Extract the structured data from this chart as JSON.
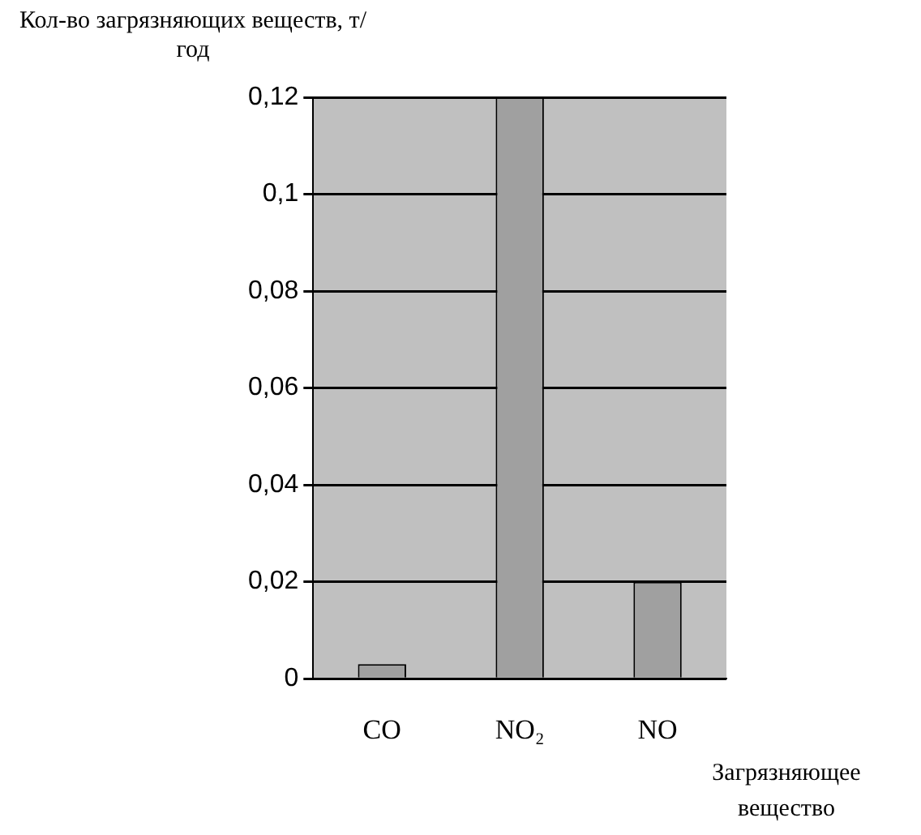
{
  "chart_data": {
    "type": "bar",
    "ylabel": "Кол-во загрязняющих веществ, т/год",
    "xlabel": "Загрязняющее вещество",
    "categories": [
      "CO",
      "NO₂",
      "NO"
    ],
    "values": [
      0.003,
      0.12,
      0.02
    ],
    "color": "#a0a0a0",
    "ylim": [
      0,
      0.12
    ],
    "yticks": [
      {
        "value": 0,
        "label": "0"
      },
      {
        "value": 0.02,
        "label": "0,02"
      },
      {
        "value": 0.04,
        "label": "0,04"
      },
      {
        "value": 0.06,
        "label": "0,06"
      },
      {
        "value": 0.08,
        "label": "0,08"
      },
      {
        "value": 0.1,
        "label": "0,1"
      },
      {
        "value": 0.12,
        "label": "0,12"
      }
    ],
    "grid": "y",
    "legend": false
  }
}
